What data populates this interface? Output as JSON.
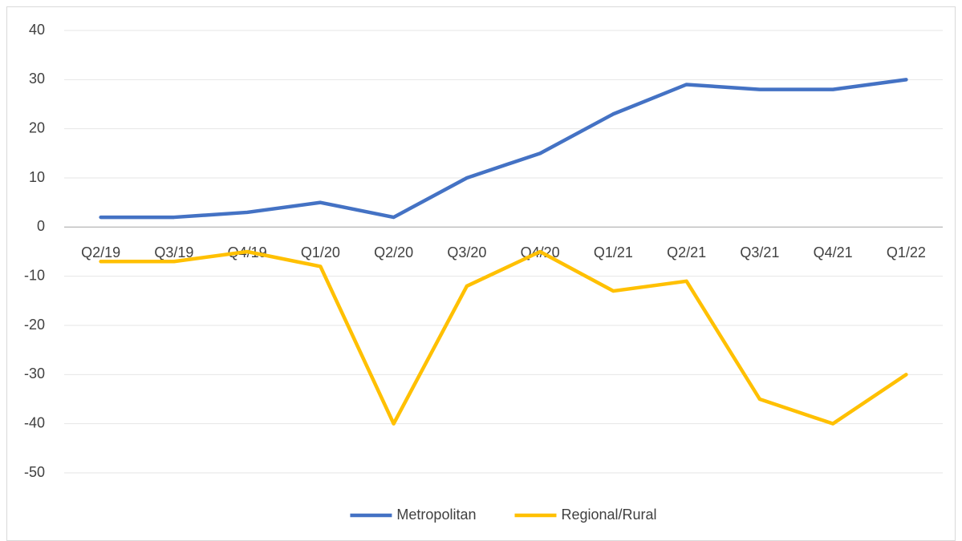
{
  "chart_data": {
    "type": "line",
    "categories": [
      "Q2/19",
      "Q3/19",
      "Q4/19",
      "Q1/20",
      "Q2/20",
      "Q3/20",
      "Q4/20",
      "Q1/21",
      "Q2/21",
      "Q3/21",
      "Q4/21",
      "Q1/22"
    ],
    "series": [
      {
        "name": "Metropolitan",
        "color": "#4472c4",
        "values": [
          2,
          2,
          3,
          5,
          2,
          10,
          15,
          23,
          29,
          28,
          28,
          30
        ]
      },
      {
        "name": "Regional/Rural",
        "color": "#ffc000",
        "values": [
          -7,
          -7,
          -5,
          -8,
          -40,
          -12,
          -5,
          -13,
          -11,
          -35,
          -40,
          -30
        ]
      }
    ],
    "ylim": [
      -50,
      40
    ],
    "yticks": [
      40,
      30,
      20,
      10,
      0,
      -10,
      -20,
      -30,
      -40,
      -50
    ],
    "grid": true,
    "legend": "bottom"
  }
}
